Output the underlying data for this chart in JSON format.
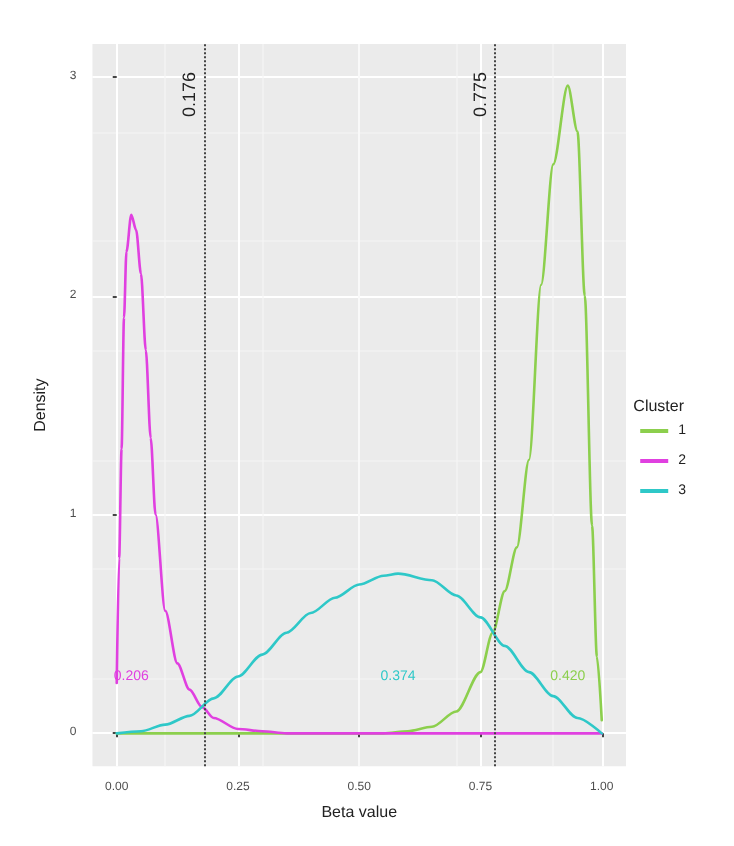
{
  "chart_data": {
    "type": "line",
    "xlabel": "Beta value",
    "ylabel": "Density",
    "legend_title": "Cluster",
    "legend": "right",
    "grid": true,
    "marker": "none",
    "line_style": "solid",
    "xlim": [
      -0.05,
      1.05
    ],
    "xticks": [
      {
        "value": 0,
        "label": "0.00"
      },
      {
        "value": 0.25,
        "label": "0.25"
      },
      {
        "value": 0.5,
        "label": "0.50"
      },
      {
        "value": 0.75,
        "label": "0.75"
      },
      {
        "value": 1,
        "label": "1.00"
      }
    ],
    "ylim": [
      -0.15,
      3.15
    ],
    "yticks": [
      0,
      1,
      2,
      3
    ],
    "series": [
      {
        "name": "1",
        "color": "#8ccf4d",
        "x": [
          0,
          0.1,
          0.2,
          0.3,
          0.4,
          0.5,
          0.55,
          0.6,
          0.65,
          0.7,
          0.75,
          0.775,
          0.8,
          0.825,
          0.85,
          0.875,
          0.9,
          0.93,
          0.95,
          0.965,
          0.98,
          0.99,
          1.0
        ],
        "values": [
          0,
          0,
          0,
          0,
          0,
          0,
          0,
          0.01,
          0.03,
          0.1,
          0.28,
          0.46,
          0.65,
          0.85,
          1.25,
          2.05,
          2.6,
          2.96,
          2.75,
          2.0,
          0.95,
          0.35,
          0.06
        ]
      },
      {
        "name": "2",
        "color": "#e040e0",
        "x": [
          0,
          0.005,
          0.01,
          0.015,
          0.02,
          0.03,
          0.04,
          0.05,
          0.06,
          0.07,
          0.08,
          0.1,
          0.125,
          0.15,
          0.176,
          0.2,
          0.25,
          0.3,
          0.35,
          0.5,
          0.75,
          1.0
        ],
        "values": [
          0.23,
          0.8,
          1.3,
          1.9,
          2.2,
          2.37,
          2.3,
          2.1,
          1.75,
          1.35,
          1.0,
          0.56,
          0.32,
          0.2,
          0.12,
          0.07,
          0.02,
          0.01,
          0,
          0,
          0,
          0
        ]
      },
      {
        "name": "3",
        "color": "#2ec8c8",
        "x": [
          0,
          0.05,
          0.1,
          0.15,
          0.2,
          0.25,
          0.3,
          0.35,
          0.4,
          0.45,
          0.5,
          0.55,
          0.58,
          0.65,
          0.7,
          0.75,
          0.8,
          0.85,
          0.9,
          0.95,
          1.0
        ],
        "values": [
          0,
          0.01,
          0.04,
          0.08,
          0.16,
          0.26,
          0.36,
          0.46,
          0.55,
          0.62,
          0.68,
          0.72,
          0.73,
          0.7,
          0.63,
          0.53,
          0.4,
          0.28,
          0.17,
          0.07,
          0
        ]
      }
    ],
    "ref_lines": [
      {
        "axis": "x",
        "value": 0.176,
        "label": "0.176",
        "color": "#444444",
        "line_style": "dotted"
      },
      {
        "axis": "x",
        "value": 0.775,
        "label": "0.775",
        "color": "#444444",
        "line_style": "dotted"
      }
    ],
    "annotations": [
      "0.420",
      "0.206",
      "0.374"
    ]
  }
}
